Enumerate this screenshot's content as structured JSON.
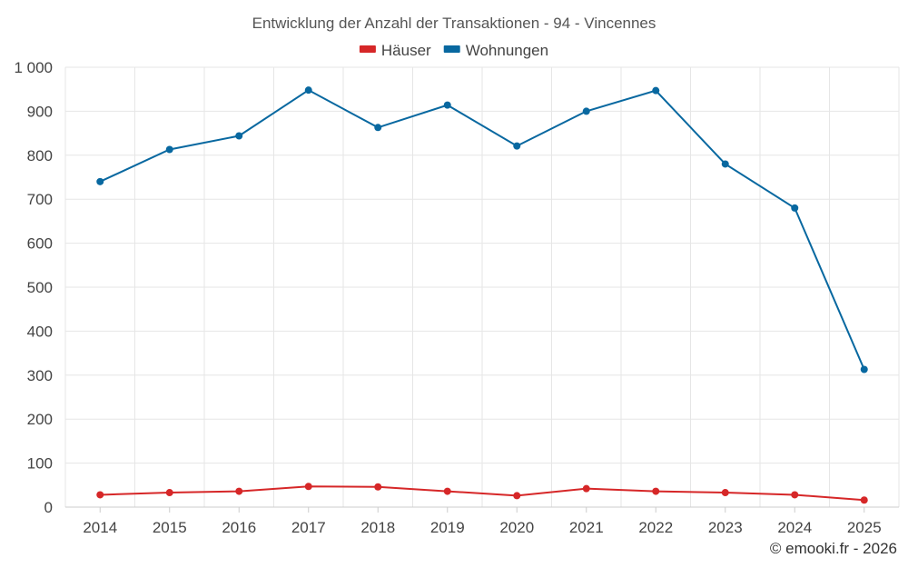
{
  "chart_data": {
    "type": "line",
    "title": "Entwicklung der Anzahl der Transaktionen - 94 - Vincennes",
    "categories": [
      "2014",
      "2015",
      "2016",
      "2017",
      "2018",
      "2019",
      "2020",
      "2021",
      "2022",
      "2023",
      "2024",
      "2025"
    ],
    "series": [
      {
        "name": "Häuser",
        "color": "#d62728",
        "values": [
          28,
          33,
          36,
          47,
          46,
          36,
          26,
          42,
          36,
          33,
          28,
          16
        ]
      },
      {
        "name": "Wohnungen",
        "color": "#0868a0",
        "values": [
          740,
          813,
          844,
          948,
          863,
          914,
          821,
          900,
          947,
          780,
          680,
          313
        ]
      }
    ],
    "ylim": [
      0,
      1000
    ],
    "yticks": [
      0,
      100,
      200,
      300,
      400,
      500,
      600,
      700,
      800,
      900,
      1000
    ],
    "ytick_labels": [
      "0",
      "100",
      "200",
      "300",
      "400",
      "500",
      "600",
      "700",
      "800",
      "900",
      "1 000"
    ],
    "xlabel": "",
    "ylabel": "",
    "legend_position": "top-center",
    "grid": true
  },
  "credit": "© emooki.fr - 2026"
}
